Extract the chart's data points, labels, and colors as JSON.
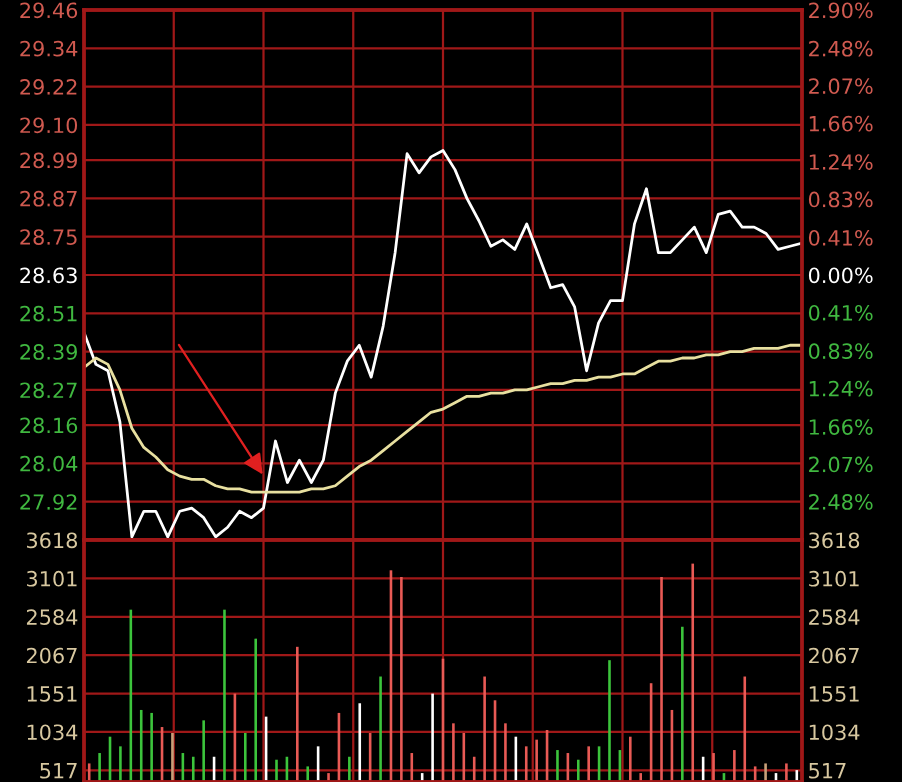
{
  "chart_data": [
    {
      "type": "line",
      "categories": [
        null,
        null,
        null,
        null,
        null,
        null,
        null,
        null,
        null,
        null,
        null,
        null,
        null,
        null,
        null,
        null,
        null,
        null,
        null,
        null,
        null,
        null,
        null,
        null,
        null,
        null,
        null,
        null,
        null,
        null,
        null,
        null,
        null,
        null,
        null,
        null,
        null,
        null,
        null,
        null,
        null,
        null,
        null,
        null,
        null,
        null,
        null,
        null,
        null,
        null,
        null,
        null,
        null,
        null,
        null,
        null,
        null,
        null,
        null,
        null,
        null
      ],
      "ylim": [
        27.8,
        29.46
      ],
      "yticks": [
        {
          "value": 27.92,
          "label": "27.92"
        },
        {
          "value": 28.04,
          "label": "28.04"
        },
        {
          "value": 28.16,
          "label": "28.16"
        },
        {
          "value": 28.27,
          "label": "28.27"
        },
        {
          "value": 28.39,
          "label": "28.39"
        },
        {
          "value": 28.51,
          "label": "28.51"
        },
        {
          "value": 28.63,
          "label": "28.63"
        },
        {
          "value": 28.75,
          "label": "28.75"
        },
        {
          "value": 28.87,
          "label": "28.87"
        },
        {
          "value": 28.99,
          "label": "28.99"
        },
        {
          "value": 29.1,
          "label": "29.10"
        },
        {
          "value": 29.22,
          "label": "29.22"
        },
        {
          "value": 29.34,
          "label": "29.34"
        },
        {
          "value": 29.46,
          "label": "29.46"
        }
      ],
      "y2lim": [
        -2.9,
        2.9
      ],
      "y2ticks": [
        {
          "value": -2.48,
          "label": "2.48%"
        },
        {
          "value": -2.07,
          "label": "2.07%"
        },
        {
          "value": -1.66,
          "label": "1.66%"
        },
        {
          "value": -1.24,
          "label": "1.24%"
        },
        {
          "value": -0.83,
          "label": "0.83%"
        },
        {
          "value": -0.41,
          "label": "0.41%"
        },
        {
          "value": 0,
          "label": "0.00%"
        },
        {
          "value": 0.41,
          "label": "0.41%"
        },
        {
          "value": 0.83,
          "label": "0.83%"
        },
        {
          "value": 1.24,
          "label": "1.24%"
        },
        {
          "value": 1.66,
          "label": "1.66%"
        },
        {
          "value": 2.07,
          "label": "2.07%"
        },
        {
          "value": 2.48,
          "label": "2.48%"
        },
        {
          "value": 2.9,
          "label": "2.90%"
        }
      ],
      "grid": true,
      "series": [
        {
          "color": "#ffffff",
          "values": [
            28.45,
            28.35,
            28.33,
            28.17,
            27.81,
            27.89,
            27.89,
            27.81,
            27.89,
            27.9,
            27.87,
            27.81,
            27.84,
            27.89,
            27.87,
            27.9,
            28.11,
            27.98,
            28.05,
            27.98,
            28.05,
            28.26,
            28.36,
            28.41,
            28.31,
            28.47,
            28.7,
            29.01,
            28.95,
            29.0,
            29.02,
            28.96,
            28.87,
            28.8,
            28.72,
            28.74,
            28.71,
            28.79,
            28.69,
            28.59,
            28.6,
            28.53,
            28.33,
            28.48,
            28.55,
            28.55,
            28.79,
            28.9,
            28.7,
            28.7,
            28.74,
            28.78,
            28.7,
            28.82,
            28.83,
            28.78,
            28.78,
            28.76,
            28.71,
            28.72,
            28.73
          ]
        },
        {
          "color": "#e8e0a0",
          "values": [
            28.34,
            28.37,
            28.35,
            28.27,
            28.15,
            28.09,
            28.06,
            28.02,
            28.0,
            27.99,
            27.99,
            27.97,
            27.96,
            27.96,
            27.95,
            27.95,
            27.95,
            27.95,
            27.95,
            27.96,
            27.96,
            27.97,
            28.0,
            28.03,
            28.05,
            28.08,
            28.11,
            28.14,
            28.17,
            28.2,
            28.21,
            28.23,
            28.25,
            28.25,
            28.26,
            28.26,
            28.27,
            28.27,
            28.28,
            28.29,
            28.29,
            28.3,
            28.3,
            28.31,
            28.31,
            28.32,
            28.32,
            28.34,
            28.36,
            28.36,
            28.37,
            28.37,
            28.38,
            28.38,
            28.39,
            28.39,
            28.4,
            28.4,
            28.4,
            28.41,
            28.41
          ]
        }
      ]
    },
    {
      "type": "bar",
      "categories": [
        null,
        null,
        null,
        null,
        null,
        null,
        null,
        null,
        null,
        null,
        null,
        null,
        null,
        null,
        null,
        null,
        null,
        null,
        null,
        null,
        null,
        null,
        null,
        null,
        null,
        null,
        null,
        null,
        null,
        null,
        null,
        null,
        null,
        null,
        null,
        null,
        null,
        null,
        null,
        null,
        null,
        null,
        null,
        null,
        null,
        null,
        null,
        null,
        null,
        null,
        null,
        null,
        null,
        null,
        null,
        null,
        null,
        null,
        null,
        null,
        null,
        null,
        null,
        null,
        null,
        null,
        null,
        null,
        null
      ],
      "ylim": [
        360,
        3618
      ],
      "yticks": [
        517,
        1034,
        1551,
        2067,
        2584,
        3101,
        3618
      ],
      "y2lim": [
        360,
        3618
      ],
      "y2ticks": [
        517,
        1034,
        1551,
        2067,
        2584,
        3101,
        3618
      ],
      "grid": true,
      "values": [
        610,
        750,
        970,
        840,
        2680,
        1330,
        1290,
        1100,
        1020,
        750,
        700,
        1190,
        700,
        2680,
        1550,
        1020,
        2290,
        1240,
        660,
        700,
        2180,
        570,
        840,
        480,
        1290,
        700,
        1420,
        1020,
        1780,
        3210,
        3120,
        750,
        480,
        1550,
        2020,
        1150,
        1020,
        700,
        1780,
        1460,
        1150,
        970,
        840,
        930,
        1060,
        790,
        750,
        660,
        840,
        840,
        2000,
        790,
        970,
        480,
        1690,
        3120,
        1330,
        2450,
        3300,
        700,
        750,
        480,
        790,
        1780,
        570,
        610,
        480,
        610,
        520
      ],
      "colors": [
        "#e85a55",
        "#3cc43c",
        "#3cc43c",
        "#3cc43c",
        "#3cc43c",
        "#3cc43c",
        "#3cc43c",
        "#e85a55",
        "#c8a078",
        "#3cc43c",
        "#3cc43c",
        "#3cc43c",
        "#ffffff",
        "#3cc43c",
        "#e85a55",
        "#3cc43c",
        "#3cc43c",
        "#ffffff",
        "#3cc43c",
        "#3cc43c",
        "#e85a55",
        "#3cc43c",
        "#ffffff",
        "#e85a55",
        "#e85a55",
        "#3cc43c",
        "#ffffff",
        "#e85a55",
        "#3cc43c",
        "#e85a55",
        "#e85a55",
        "#e85a55",
        "#ffffff",
        "#ffffff",
        "#e85a55",
        "#e85a55",
        "#e85a55",
        "#e85a55",
        "#e85a55",
        "#e85a55",
        "#e85a55",
        "#ffffff",
        "#e85a55",
        "#e85a55",
        "#e85a55",
        "#3cc43c",
        "#e85a55",
        "#3cc43c",
        "#e85a55",
        "#3cc43c",
        "#3cc43c",
        "#3cc43c",
        "#e85a55",
        "#e85a55",
        "#e85a55",
        "#e85a55",
        "#e85a55",
        "#3cc43c",
        "#e85a55",
        "#ffffff",
        "#e85a55",
        "#3cc43c",
        "#e85a55",
        "#e85a55",
        "#e85a55",
        "#c8a078",
        "#ffffff",
        "#e85a55",
        "#ffffff"
      ]
    }
  ]
}
